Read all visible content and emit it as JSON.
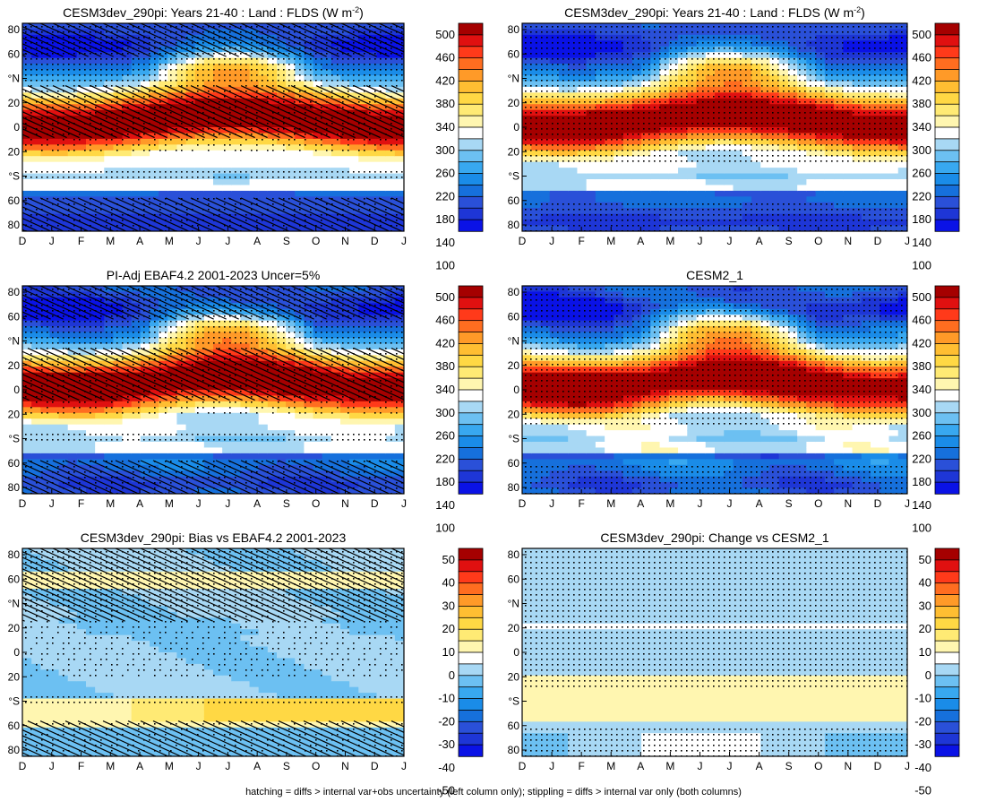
{
  "figure": {
    "footnote": "hatching = diffs > internal var+obs uncertainty (left column only); stippling = diffs > internal var only (both columns)"
  },
  "abs_colorbar": {
    "labels": [
      "500",
      "460",
      "420",
      "380",
      "340",
      "300",
      "260",
      "220",
      "180",
      "140",
      "100"
    ],
    "colors": [
      "#a50000",
      "#e01010",
      "#ff3a1a",
      "#ff6d20",
      "#ff9a28",
      "#ffbe32",
      "#ffd844",
      "#ffea74",
      "#fff6b0",
      "#ffffff",
      "#a8d8f4",
      "#6cc0f2",
      "#38a8f0",
      "#1a8ce8",
      "#1670dc",
      "#2a50d8",
      "#1e36d6",
      "#0a12e6"
    ]
  },
  "diff_colorbar": {
    "labels": [
      "50",
      "40",
      "30",
      "20",
      "10",
      "0",
      "-10",
      "-20",
      "-30",
      "-40",
      "-50"
    ],
    "colors": [
      "#a50000",
      "#e01010",
      "#ff3a1a",
      "#ff6d20",
      "#ff9a28",
      "#ffbe32",
      "#ffd844",
      "#ffea74",
      "#fff6b0",
      "#ffffff",
      "#a8d8f4",
      "#6cc0f2",
      "#38a8f0",
      "#1a8ce8",
      "#1670dc",
      "#2a50d8",
      "#1e36d6",
      "#0a12e6"
    ]
  },
  "chart_data": [
    {
      "type": "heatmap",
      "title": "CESM3dev_290pi: Years 21-40 : Land : FLDS (W m",
      "title_sup": "-2",
      "title_end": ")",
      "x_tick_labels": [
        "D",
        "J",
        "F",
        "M",
        "A",
        "M",
        "J",
        "J",
        "A",
        "S",
        "O",
        "N",
        "D",
        "J"
      ],
      "y_tick_labels": [
        "80",
        "60",
        "°N",
        "20",
        "0",
        "20",
        "°S",
        "60",
        "80"
      ],
      "colorbar": "abs",
      "hatching": true,
      "stippling": true
    },
    {
      "type": "heatmap",
      "title": "CESM3dev_290pi: Years 21-40 : Land : FLDS (W m",
      "title_sup": "-2",
      "title_end": ")",
      "x_tick_labels": [
        "D",
        "J",
        "F",
        "M",
        "A",
        "M",
        "J",
        "J",
        "A",
        "S",
        "O",
        "N",
        "D",
        "J"
      ],
      "y_tick_labels": [
        "80",
        "60",
        "°N",
        "20",
        "0",
        "20",
        "°S",
        "60",
        "80"
      ],
      "colorbar": "abs",
      "hatching": false,
      "stippling": true
    },
    {
      "type": "heatmap",
      "title": "PI-Adj EBAF4.2 2001-2023 Uncer=5%",
      "x_tick_labels": [
        "D",
        "J",
        "F",
        "M",
        "A",
        "M",
        "J",
        "J",
        "A",
        "S",
        "O",
        "N",
        "D",
        "J"
      ],
      "y_tick_labels": [
        "80",
        "60",
        "°N",
        "20",
        "0",
        "20",
        "°S",
        "60",
        "80"
      ],
      "colorbar": "abs",
      "hatching": true,
      "stippling": true
    },
    {
      "type": "heatmap",
      "title": "CESM2_1",
      "x_tick_labels": [
        "D",
        "J",
        "F",
        "M",
        "A",
        "M",
        "J",
        "J",
        "A",
        "S",
        "O",
        "N",
        "D",
        "J"
      ],
      "y_tick_labels": [
        "80",
        "60",
        "°N",
        "20",
        "0",
        "20",
        "°S",
        "60",
        "80"
      ],
      "colorbar": "abs",
      "hatching": false,
      "stippling": true
    },
    {
      "type": "heatmap",
      "title": "CESM3dev_290pi: Bias vs EBAF4.2 2001-2023",
      "x_tick_labels": [
        "D",
        "J",
        "F",
        "M",
        "A",
        "M",
        "J",
        "J",
        "A",
        "S",
        "O",
        "N",
        "D",
        "J"
      ],
      "y_tick_labels": [
        "80",
        "60",
        "°N",
        "20",
        "0",
        "20",
        "°S",
        "60",
        "80"
      ],
      "colorbar": "diff",
      "hatching": true,
      "stippling": true
    },
    {
      "type": "heatmap",
      "title": "CESM3dev_290pi: Change vs CESM2_1",
      "x_tick_labels": [
        "D",
        "J",
        "F",
        "M",
        "A",
        "M",
        "J",
        "J",
        "A",
        "S",
        "O",
        "N",
        "D",
        "J"
      ],
      "y_tick_labels": [
        "80",
        "60",
        "°N",
        "20",
        "0",
        "20",
        "°S",
        "60",
        "80"
      ],
      "colorbar": "diff",
      "hatching": false,
      "stippling": true
    }
  ]
}
